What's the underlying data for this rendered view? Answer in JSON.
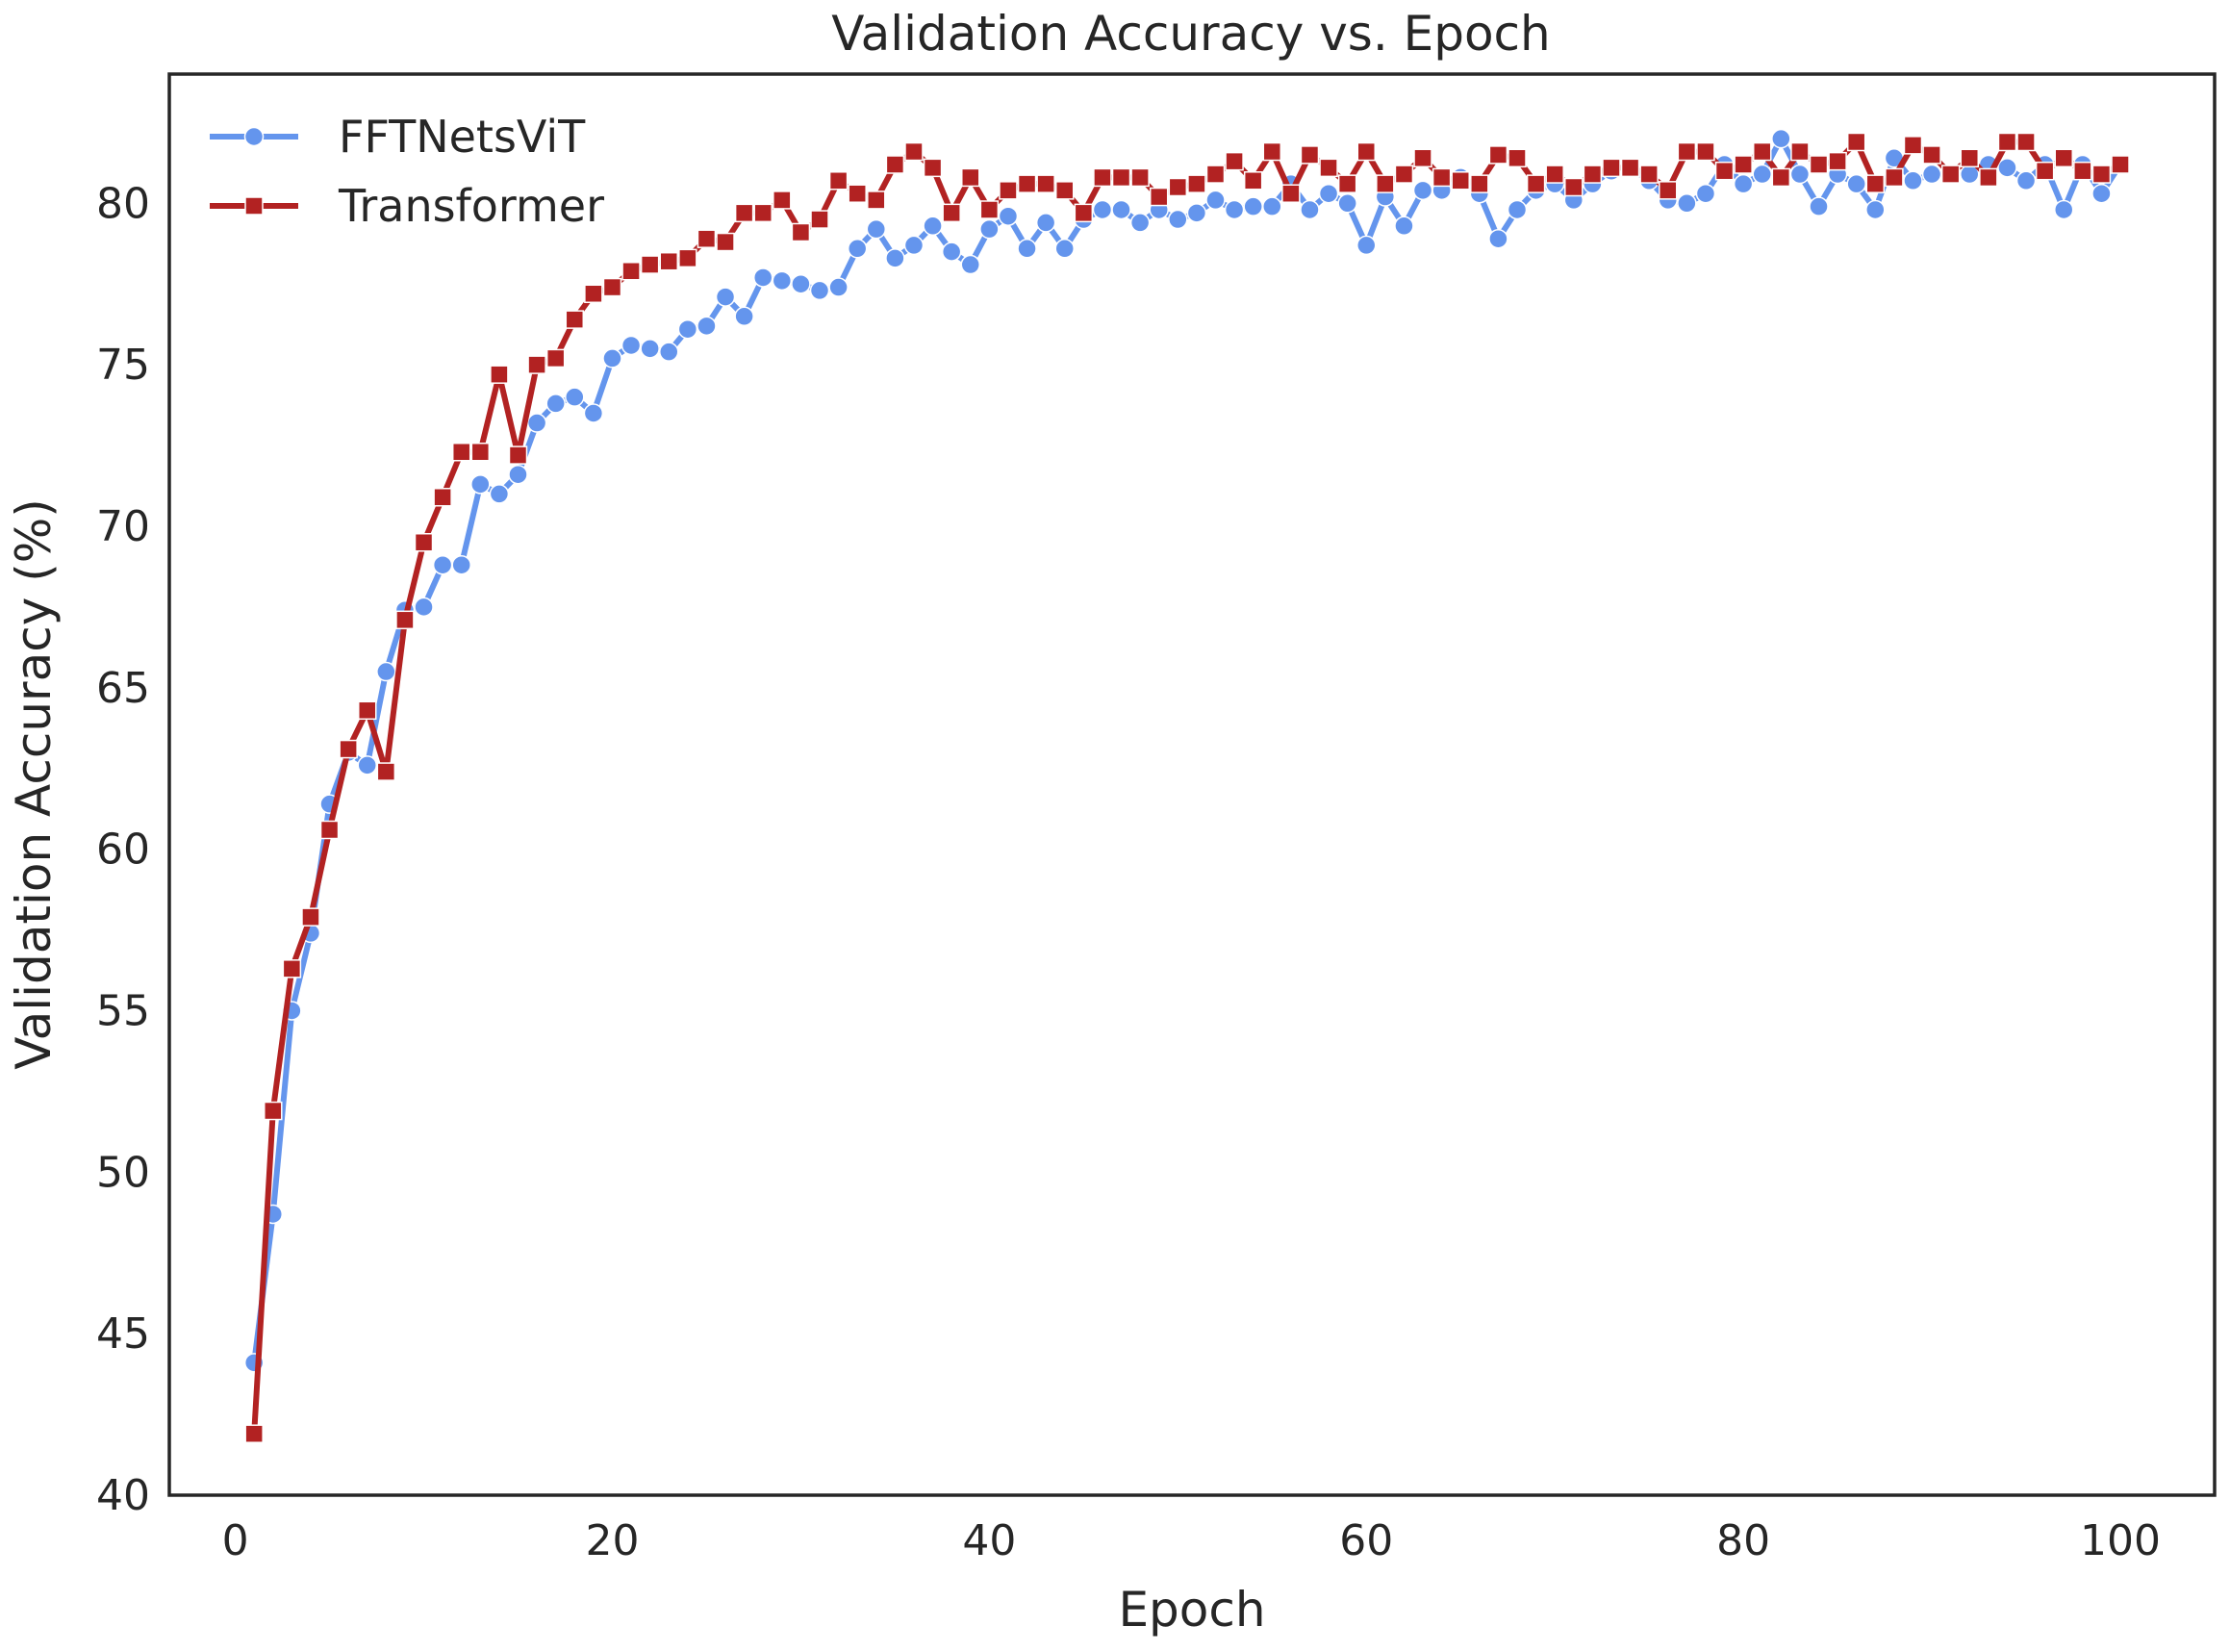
{
  "chart_data": {
    "type": "line",
    "title": "Validation Accuracy vs. Epoch",
    "xlabel": "Epoch",
    "ylabel": "Validation Accuracy (%)",
    "xlim": [
      -3.5,
      105
    ],
    "ylim": [
      40,
      84
    ],
    "xticks": [
      0,
      20,
      40,
      60,
      80,
      100
    ],
    "yticks": [
      40,
      45,
      50,
      55,
      60,
      65,
      70,
      75,
      80
    ],
    "grid": false,
    "legend_position": "top-left",
    "x": [
      1,
      2,
      3,
      4,
      5,
      6,
      7,
      8,
      9,
      10,
      11,
      12,
      13,
      14,
      15,
      16,
      17,
      18,
      19,
      20,
      21,
      22,
      23,
      24,
      25,
      26,
      27,
      28,
      29,
      30,
      31,
      32,
      33,
      34,
      35,
      36,
      37,
      38,
      39,
      40,
      41,
      42,
      43,
      44,
      45,
      46,
      47,
      48,
      49,
      50,
      51,
      52,
      53,
      54,
      55,
      56,
      57,
      58,
      59,
      60,
      61,
      62,
      63,
      64,
      65,
      66,
      67,
      68,
      69,
      70,
      71,
      72,
      73,
      74,
      75,
      76,
      77,
      78,
      79,
      80,
      81,
      82,
      83,
      84,
      85,
      86,
      87,
      88,
      89,
      90,
      91,
      92,
      93,
      94,
      95,
      96,
      97,
      98,
      99,
      100
    ],
    "series": [
      {
        "name": "FFTNetsViT",
        "color": "#6495ED",
        "marker": "circle",
        "values": [
          44.1,
          48.7,
          55.0,
          57.4,
          61.4,
          63.0,
          62.6,
          65.5,
          67.4,
          67.5,
          68.8,
          68.8,
          71.3,
          71.0,
          71.6,
          73.2,
          73.8,
          74.0,
          73.5,
          75.2,
          75.6,
          75.5,
          75.4,
          76.1,
          76.2,
          77.1,
          76.5,
          77.7,
          77.6,
          77.5,
          77.3,
          77.4,
          78.6,
          79.2,
          78.3,
          78.7,
          79.3,
          78.5,
          78.1,
          79.2,
          79.6,
          78.6,
          79.4,
          78.6,
          79.5,
          79.8,
          79.8,
          79.4,
          79.8,
          79.5,
          79.7,
          80.1,
          79.8,
          79.9,
          79.9,
          80.6,
          79.8,
          80.3,
          80.0,
          78.7,
          80.2,
          79.3,
          80.4,
          80.4,
          80.8,
          80.3,
          78.9,
          79.8,
          80.4,
          80.6,
          80.1,
          80.6,
          81.0,
          81.1,
          80.7,
          80.1,
          80.0,
          80.3,
          81.2,
          80.6,
          80.9,
          82.0,
          80.9,
          79.9,
          80.9,
          80.6,
          79.8,
          81.4,
          80.7,
          80.9,
          80.9,
          80.9,
          81.2,
          81.1,
          80.7,
          81.2,
          79.8,
          81.2,
          80.3,
          81.2
        ]
      },
      {
        "name": "Transformer",
        "color": "#B22222",
        "marker": "square",
        "values": [
          41.9,
          51.9,
          56.3,
          57.9,
          60.6,
          63.1,
          64.3,
          62.4,
          67.1,
          69.5,
          70.9,
          72.3,
          72.3,
          74.7,
          72.2,
          75.0,
          75.2,
          76.4,
          77.2,
          77.4,
          77.9,
          78.1,
          78.2,
          78.3,
          78.9,
          78.8,
          79.7,
          79.7,
          80.1,
          79.1,
          79.5,
          80.7,
          80.3,
          80.1,
          81.2,
          81.6,
          81.1,
          79.7,
          80.8,
          79.8,
          80.4,
          80.6,
          80.6,
          80.4,
          79.7,
          80.8,
          80.8,
          80.8,
          80.2,
          80.5,
          80.6,
          80.9,
          81.3,
          80.7,
          81.6,
          80.3,
          81.5,
          81.1,
          80.6,
          81.6,
          80.6,
          80.9,
          81.4,
          80.8,
          80.7,
          80.6,
          81.5,
          81.4,
          80.6,
          80.9,
          80.5,
          80.9,
          81.1,
          81.1,
          80.9,
          80.4,
          81.6,
          81.6,
          81.0,
          81.2,
          81.6,
          80.8,
          81.6,
          81.2,
          81.3,
          81.9,
          80.6,
          80.8,
          81.8,
          81.5,
          80.9,
          81.4,
          80.8,
          81.9,
          81.9,
          81.0,
          81.4,
          81.0,
          80.9,
          81.2
        ]
      }
    ]
  }
}
